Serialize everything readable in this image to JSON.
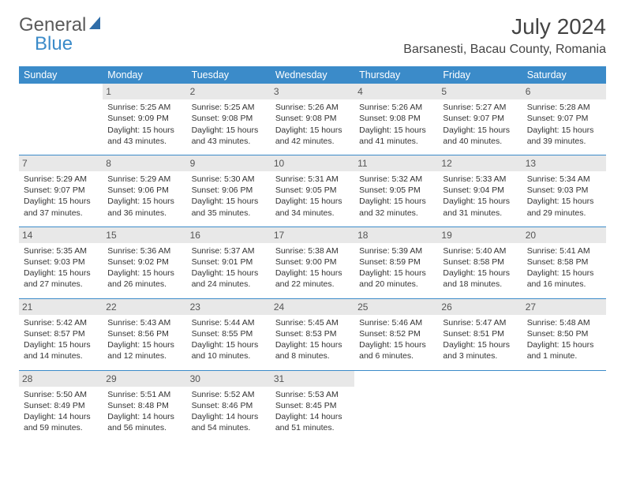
{
  "logo": {
    "part1": "General",
    "part2": "Blue"
  },
  "title": "July 2024",
  "location": "Barsanesti, Bacau County, Romania",
  "colors": {
    "header_bg": "#3b8bc9",
    "daynum_bg": "#e8e8e8",
    "rule": "#3b8bc9"
  },
  "weekdays": [
    "Sunday",
    "Monday",
    "Tuesday",
    "Wednesday",
    "Thursday",
    "Friday",
    "Saturday"
  ],
  "weeks": [
    [
      null,
      {
        "n": "1",
        "sr": "Sunrise: 5:25 AM",
        "ss": "Sunset: 9:09 PM",
        "dl": "Daylight: 15 hours and 43 minutes."
      },
      {
        "n": "2",
        "sr": "Sunrise: 5:25 AM",
        "ss": "Sunset: 9:08 PM",
        "dl": "Daylight: 15 hours and 43 minutes."
      },
      {
        "n": "3",
        "sr": "Sunrise: 5:26 AM",
        "ss": "Sunset: 9:08 PM",
        "dl": "Daylight: 15 hours and 42 minutes."
      },
      {
        "n": "4",
        "sr": "Sunrise: 5:26 AM",
        "ss": "Sunset: 9:08 PM",
        "dl": "Daylight: 15 hours and 41 minutes."
      },
      {
        "n": "5",
        "sr": "Sunrise: 5:27 AM",
        "ss": "Sunset: 9:07 PM",
        "dl": "Daylight: 15 hours and 40 minutes."
      },
      {
        "n": "6",
        "sr": "Sunrise: 5:28 AM",
        "ss": "Sunset: 9:07 PM",
        "dl": "Daylight: 15 hours and 39 minutes."
      }
    ],
    [
      {
        "n": "7",
        "sr": "Sunrise: 5:29 AM",
        "ss": "Sunset: 9:07 PM",
        "dl": "Daylight: 15 hours and 37 minutes."
      },
      {
        "n": "8",
        "sr": "Sunrise: 5:29 AM",
        "ss": "Sunset: 9:06 PM",
        "dl": "Daylight: 15 hours and 36 minutes."
      },
      {
        "n": "9",
        "sr": "Sunrise: 5:30 AM",
        "ss": "Sunset: 9:06 PM",
        "dl": "Daylight: 15 hours and 35 minutes."
      },
      {
        "n": "10",
        "sr": "Sunrise: 5:31 AM",
        "ss": "Sunset: 9:05 PM",
        "dl": "Daylight: 15 hours and 34 minutes."
      },
      {
        "n": "11",
        "sr": "Sunrise: 5:32 AM",
        "ss": "Sunset: 9:05 PM",
        "dl": "Daylight: 15 hours and 32 minutes."
      },
      {
        "n": "12",
        "sr": "Sunrise: 5:33 AM",
        "ss": "Sunset: 9:04 PM",
        "dl": "Daylight: 15 hours and 31 minutes."
      },
      {
        "n": "13",
        "sr": "Sunrise: 5:34 AM",
        "ss": "Sunset: 9:03 PM",
        "dl": "Daylight: 15 hours and 29 minutes."
      }
    ],
    [
      {
        "n": "14",
        "sr": "Sunrise: 5:35 AM",
        "ss": "Sunset: 9:03 PM",
        "dl": "Daylight: 15 hours and 27 minutes."
      },
      {
        "n": "15",
        "sr": "Sunrise: 5:36 AM",
        "ss": "Sunset: 9:02 PM",
        "dl": "Daylight: 15 hours and 26 minutes."
      },
      {
        "n": "16",
        "sr": "Sunrise: 5:37 AM",
        "ss": "Sunset: 9:01 PM",
        "dl": "Daylight: 15 hours and 24 minutes."
      },
      {
        "n": "17",
        "sr": "Sunrise: 5:38 AM",
        "ss": "Sunset: 9:00 PM",
        "dl": "Daylight: 15 hours and 22 minutes."
      },
      {
        "n": "18",
        "sr": "Sunrise: 5:39 AM",
        "ss": "Sunset: 8:59 PM",
        "dl": "Daylight: 15 hours and 20 minutes."
      },
      {
        "n": "19",
        "sr": "Sunrise: 5:40 AM",
        "ss": "Sunset: 8:58 PM",
        "dl": "Daylight: 15 hours and 18 minutes."
      },
      {
        "n": "20",
        "sr": "Sunrise: 5:41 AM",
        "ss": "Sunset: 8:58 PM",
        "dl": "Daylight: 15 hours and 16 minutes."
      }
    ],
    [
      {
        "n": "21",
        "sr": "Sunrise: 5:42 AM",
        "ss": "Sunset: 8:57 PM",
        "dl": "Daylight: 15 hours and 14 minutes."
      },
      {
        "n": "22",
        "sr": "Sunrise: 5:43 AM",
        "ss": "Sunset: 8:56 PM",
        "dl": "Daylight: 15 hours and 12 minutes."
      },
      {
        "n": "23",
        "sr": "Sunrise: 5:44 AM",
        "ss": "Sunset: 8:55 PM",
        "dl": "Daylight: 15 hours and 10 minutes."
      },
      {
        "n": "24",
        "sr": "Sunrise: 5:45 AM",
        "ss": "Sunset: 8:53 PM",
        "dl": "Daylight: 15 hours and 8 minutes."
      },
      {
        "n": "25",
        "sr": "Sunrise: 5:46 AM",
        "ss": "Sunset: 8:52 PM",
        "dl": "Daylight: 15 hours and 6 minutes."
      },
      {
        "n": "26",
        "sr": "Sunrise: 5:47 AM",
        "ss": "Sunset: 8:51 PM",
        "dl": "Daylight: 15 hours and 3 minutes."
      },
      {
        "n": "27",
        "sr": "Sunrise: 5:48 AM",
        "ss": "Sunset: 8:50 PM",
        "dl": "Daylight: 15 hours and 1 minute."
      }
    ],
    [
      {
        "n": "28",
        "sr": "Sunrise: 5:50 AM",
        "ss": "Sunset: 8:49 PM",
        "dl": "Daylight: 14 hours and 59 minutes."
      },
      {
        "n": "29",
        "sr": "Sunrise: 5:51 AM",
        "ss": "Sunset: 8:48 PM",
        "dl": "Daylight: 14 hours and 56 minutes."
      },
      {
        "n": "30",
        "sr": "Sunrise: 5:52 AM",
        "ss": "Sunset: 8:46 PM",
        "dl": "Daylight: 14 hours and 54 minutes."
      },
      {
        "n": "31",
        "sr": "Sunrise: 5:53 AM",
        "ss": "Sunset: 8:45 PM",
        "dl": "Daylight: 14 hours and 51 minutes."
      },
      null,
      null,
      null
    ]
  ]
}
